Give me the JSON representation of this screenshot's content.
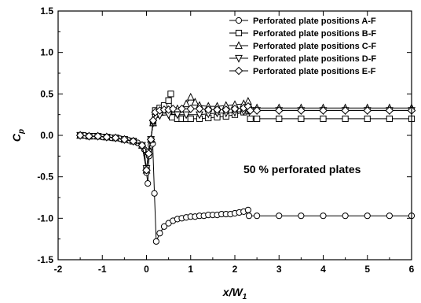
{
  "chart_data": {
    "type": "line",
    "xlabel": "x/W",
    "xlabel_sub": "1",
    "ylabel": "C",
    "ylabel_sub": "p",
    "xlim": [
      -2,
      6
    ],
    "ylim": [
      -1.5,
      1.5
    ],
    "xticks": [
      "-2",
      "-1",
      "0",
      "1",
      "2",
      "3",
      "4",
      "5",
      "6"
    ],
    "yticks": [
      "1.5",
      "1.0",
      "0.5",
      "0.0",
      "-0.5",
      "-1.0",
      "-1.5"
    ],
    "legend_position": "top-right",
    "annotation": "50 % perforated plates",
    "series": [
      {
        "name": "Perforated plate positions A-F",
        "marker": "circle",
        "points": [
          [
            -1.5,
            0.0
          ],
          [
            -1.4,
            0.0
          ],
          [
            -1.3,
            -0.01
          ],
          [
            -1.2,
            -0.01
          ],
          [
            -1.1,
            -0.01
          ],
          [
            -1.0,
            -0.02
          ],
          [
            -0.9,
            -0.02
          ],
          [
            -0.8,
            -0.03
          ],
          [
            -0.7,
            -0.03
          ],
          [
            -0.6,
            -0.04
          ],
          [
            -0.5,
            -0.05
          ],
          [
            -0.4,
            -0.06
          ],
          [
            -0.3,
            -0.07
          ],
          [
            -0.2,
            -0.09
          ],
          [
            -0.1,
            -0.12
          ],
          [
            -0.05,
            -0.17
          ],
          [
            0.0,
            -0.45
          ],
          [
            0.03,
            -0.58
          ],
          [
            0.06,
            -0.25
          ],
          [
            0.1,
            -0.12
          ],
          [
            0.14,
            -0.1
          ],
          [
            0.18,
            -0.7
          ],
          [
            0.22,
            -1.28
          ],
          [
            0.3,
            -1.18
          ],
          [
            0.4,
            -1.1
          ],
          [
            0.5,
            -1.06
          ],
          [
            0.6,
            -1.03
          ],
          [
            0.7,
            -1.01
          ],
          [
            0.8,
            -1.0
          ],
          [
            0.9,
            -0.99
          ],
          [
            1.0,
            -0.98
          ],
          [
            1.1,
            -0.98
          ],
          [
            1.2,
            -0.97
          ],
          [
            1.3,
            -0.97
          ],
          [
            1.4,
            -0.96
          ],
          [
            1.5,
            -0.96
          ],
          [
            1.6,
            -0.96
          ],
          [
            1.7,
            -0.95
          ],
          [
            1.8,
            -0.95
          ],
          [
            1.9,
            -0.95
          ],
          [
            2.0,
            -0.94
          ],
          [
            2.1,
            -0.93
          ],
          [
            2.2,
            -0.92
          ],
          [
            2.3,
            -0.9
          ],
          [
            2.32,
            -0.97
          ],
          [
            2.5,
            -0.97
          ],
          [
            3.0,
            -0.97
          ],
          [
            3.5,
            -0.97
          ],
          [
            4.0,
            -0.97
          ],
          [
            4.5,
            -0.97
          ],
          [
            5.0,
            -0.97
          ],
          [
            5.5,
            -0.97
          ],
          [
            6.0,
            -0.97
          ]
        ]
      },
      {
        "name": "Perforated plate positions B-F",
        "marker": "square",
        "points": [
          [
            -1.5,
            0.0
          ],
          [
            -1.3,
            -0.01
          ],
          [
            -1.1,
            -0.01
          ],
          [
            -0.9,
            -0.02
          ],
          [
            -0.7,
            -0.03
          ],
          [
            -0.5,
            -0.05
          ],
          [
            -0.3,
            -0.07
          ],
          [
            -0.1,
            -0.12
          ],
          [
            0.0,
            -0.4
          ],
          [
            0.05,
            -0.2
          ],
          [
            0.1,
            -0.05
          ],
          [
            0.15,
            0.15
          ],
          [
            0.2,
            0.3
          ],
          [
            0.3,
            0.33
          ],
          [
            0.4,
            0.36
          ],
          [
            0.5,
            0.42
          ],
          [
            0.55,
            0.5
          ],
          [
            0.58,
            0.22
          ],
          [
            0.7,
            0.2
          ],
          [
            0.8,
            0.2
          ],
          [
            0.9,
            0.2
          ],
          [
            1.0,
            0.2
          ],
          [
            1.2,
            0.2
          ],
          [
            1.4,
            0.21
          ],
          [
            1.6,
            0.22
          ],
          [
            1.8,
            0.23
          ],
          [
            2.0,
            0.25
          ],
          [
            2.2,
            0.28
          ],
          [
            2.3,
            0.3
          ],
          [
            2.35,
            0.2
          ],
          [
            2.5,
            0.2
          ],
          [
            3.0,
            0.2
          ],
          [
            3.5,
            0.2
          ],
          [
            4.0,
            0.2
          ],
          [
            4.5,
            0.2
          ],
          [
            5.0,
            0.2
          ],
          [
            5.5,
            0.2
          ],
          [
            6.0,
            0.2
          ]
        ]
      },
      {
        "name": "Perforated plate positions C-F",
        "marker": "triangle-up",
        "points": [
          [
            -1.5,
            0.0
          ],
          [
            -1.3,
            -0.01
          ],
          [
            -1.1,
            -0.01
          ],
          [
            -0.9,
            -0.02
          ],
          [
            -0.7,
            -0.03
          ],
          [
            -0.5,
            -0.05
          ],
          [
            -0.3,
            -0.07
          ],
          [
            -0.1,
            -0.12
          ],
          [
            0.0,
            -0.42
          ],
          [
            0.05,
            -0.2
          ],
          [
            0.1,
            -0.05
          ],
          [
            0.15,
            0.15
          ],
          [
            0.2,
            0.25
          ],
          [
            0.3,
            0.28
          ],
          [
            0.5,
            0.3
          ],
          [
            0.7,
            0.32
          ],
          [
            0.9,
            0.38
          ],
          [
            1.0,
            0.46
          ],
          [
            1.1,
            0.4
          ],
          [
            1.2,
            0.36
          ],
          [
            1.4,
            0.35
          ],
          [
            1.6,
            0.35
          ],
          [
            1.8,
            0.36
          ],
          [
            2.0,
            0.37
          ],
          [
            2.2,
            0.38
          ],
          [
            2.3,
            0.41
          ],
          [
            2.35,
            0.33
          ],
          [
            2.5,
            0.33
          ],
          [
            3.0,
            0.33
          ],
          [
            3.5,
            0.33
          ],
          [
            4.0,
            0.33
          ],
          [
            4.5,
            0.33
          ],
          [
            5.0,
            0.33
          ],
          [
            5.5,
            0.33
          ],
          [
            6.0,
            0.33
          ]
        ]
      },
      {
        "name": "Perforated plate positions D-F",
        "marker": "triangle-down",
        "points": [
          [
            -1.5,
            0.0
          ],
          [
            -1.3,
            -0.01
          ],
          [
            -1.1,
            -0.01
          ],
          [
            -0.9,
            -0.02
          ],
          [
            -0.7,
            -0.03
          ],
          [
            -0.5,
            -0.05
          ],
          [
            -0.3,
            -0.07
          ],
          [
            -0.1,
            -0.12
          ],
          [
            0.0,
            -0.4
          ],
          [
            0.05,
            -0.2
          ],
          [
            0.1,
            -0.05
          ],
          [
            0.15,
            0.15
          ],
          [
            0.2,
            0.22
          ],
          [
            0.3,
            0.24
          ],
          [
            0.5,
            0.25
          ],
          [
            0.7,
            0.25
          ],
          [
            0.9,
            0.25
          ],
          [
            1.2,
            0.25
          ],
          [
            1.4,
            0.26
          ],
          [
            1.6,
            0.27
          ],
          [
            1.8,
            0.27
          ],
          [
            2.0,
            0.28
          ],
          [
            2.2,
            0.29
          ],
          [
            2.3,
            0.3
          ],
          [
            2.35,
            0.3
          ],
          [
            2.5,
            0.3
          ],
          [
            3.0,
            0.3
          ],
          [
            3.5,
            0.3
          ],
          [
            4.0,
            0.3
          ],
          [
            4.5,
            0.3
          ],
          [
            5.0,
            0.3
          ],
          [
            5.5,
            0.3
          ],
          [
            6.0,
            0.3
          ]
        ]
      },
      {
        "name": "Perforated plate positions E-F",
        "marker": "diamond",
        "points": [
          [
            -1.5,
            0.0
          ],
          [
            -1.3,
            -0.01
          ],
          [
            -1.1,
            -0.01
          ],
          [
            -0.9,
            -0.02
          ],
          [
            -0.7,
            -0.03
          ],
          [
            -0.5,
            -0.05
          ],
          [
            -0.3,
            -0.07
          ],
          [
            -0.1,
            -0.12
          ],
          [
            0.0,
            -0.42
          ],
          [
            0.05,
            -0.22
          ],
          [
            0.1,
            -0.05
          ],
          [
            0.15,
            0.18
          ],
          [
            0.2,
            0.28
          ],
          [
            0.3,
            0.3
          ],
          [
            0.4,
            0.31
          ],
          [
            0.5,
            0.31
          ],
          [
            0.6,
            0.32
          ],
          [
            0.8,
            0.32
          ],
          [
            1.0,
            0.32
          ],
          [
            1.2,
            0.32
          ],
          [
            1.4,
            0.31
          ],
          [
            1.6,
            0.31
          ],
          [
            1.8,
            0.31
          ],
          [
            2.0,
            0.32
          ],
          [
            2.2,
            0.33
          ],
          [
            2.3,
            0.35
          ],
          [
            2.35,
            0.3
          ],
          [
            2.5,
            0.3
          ],
          [
            3.0,
            0.3
          ],
          [
            3.5,
            0.3
          ],
          [
            4.0,
            0.3
          ],
          [
            4.5,
            0.3
          ],
          [
            5.0,
            0.3
          ],
          [
            5.5,
            0.3
          ],
          [
            6.0,
            0.3
          ]
        ]
      }
    ]
  }
}
